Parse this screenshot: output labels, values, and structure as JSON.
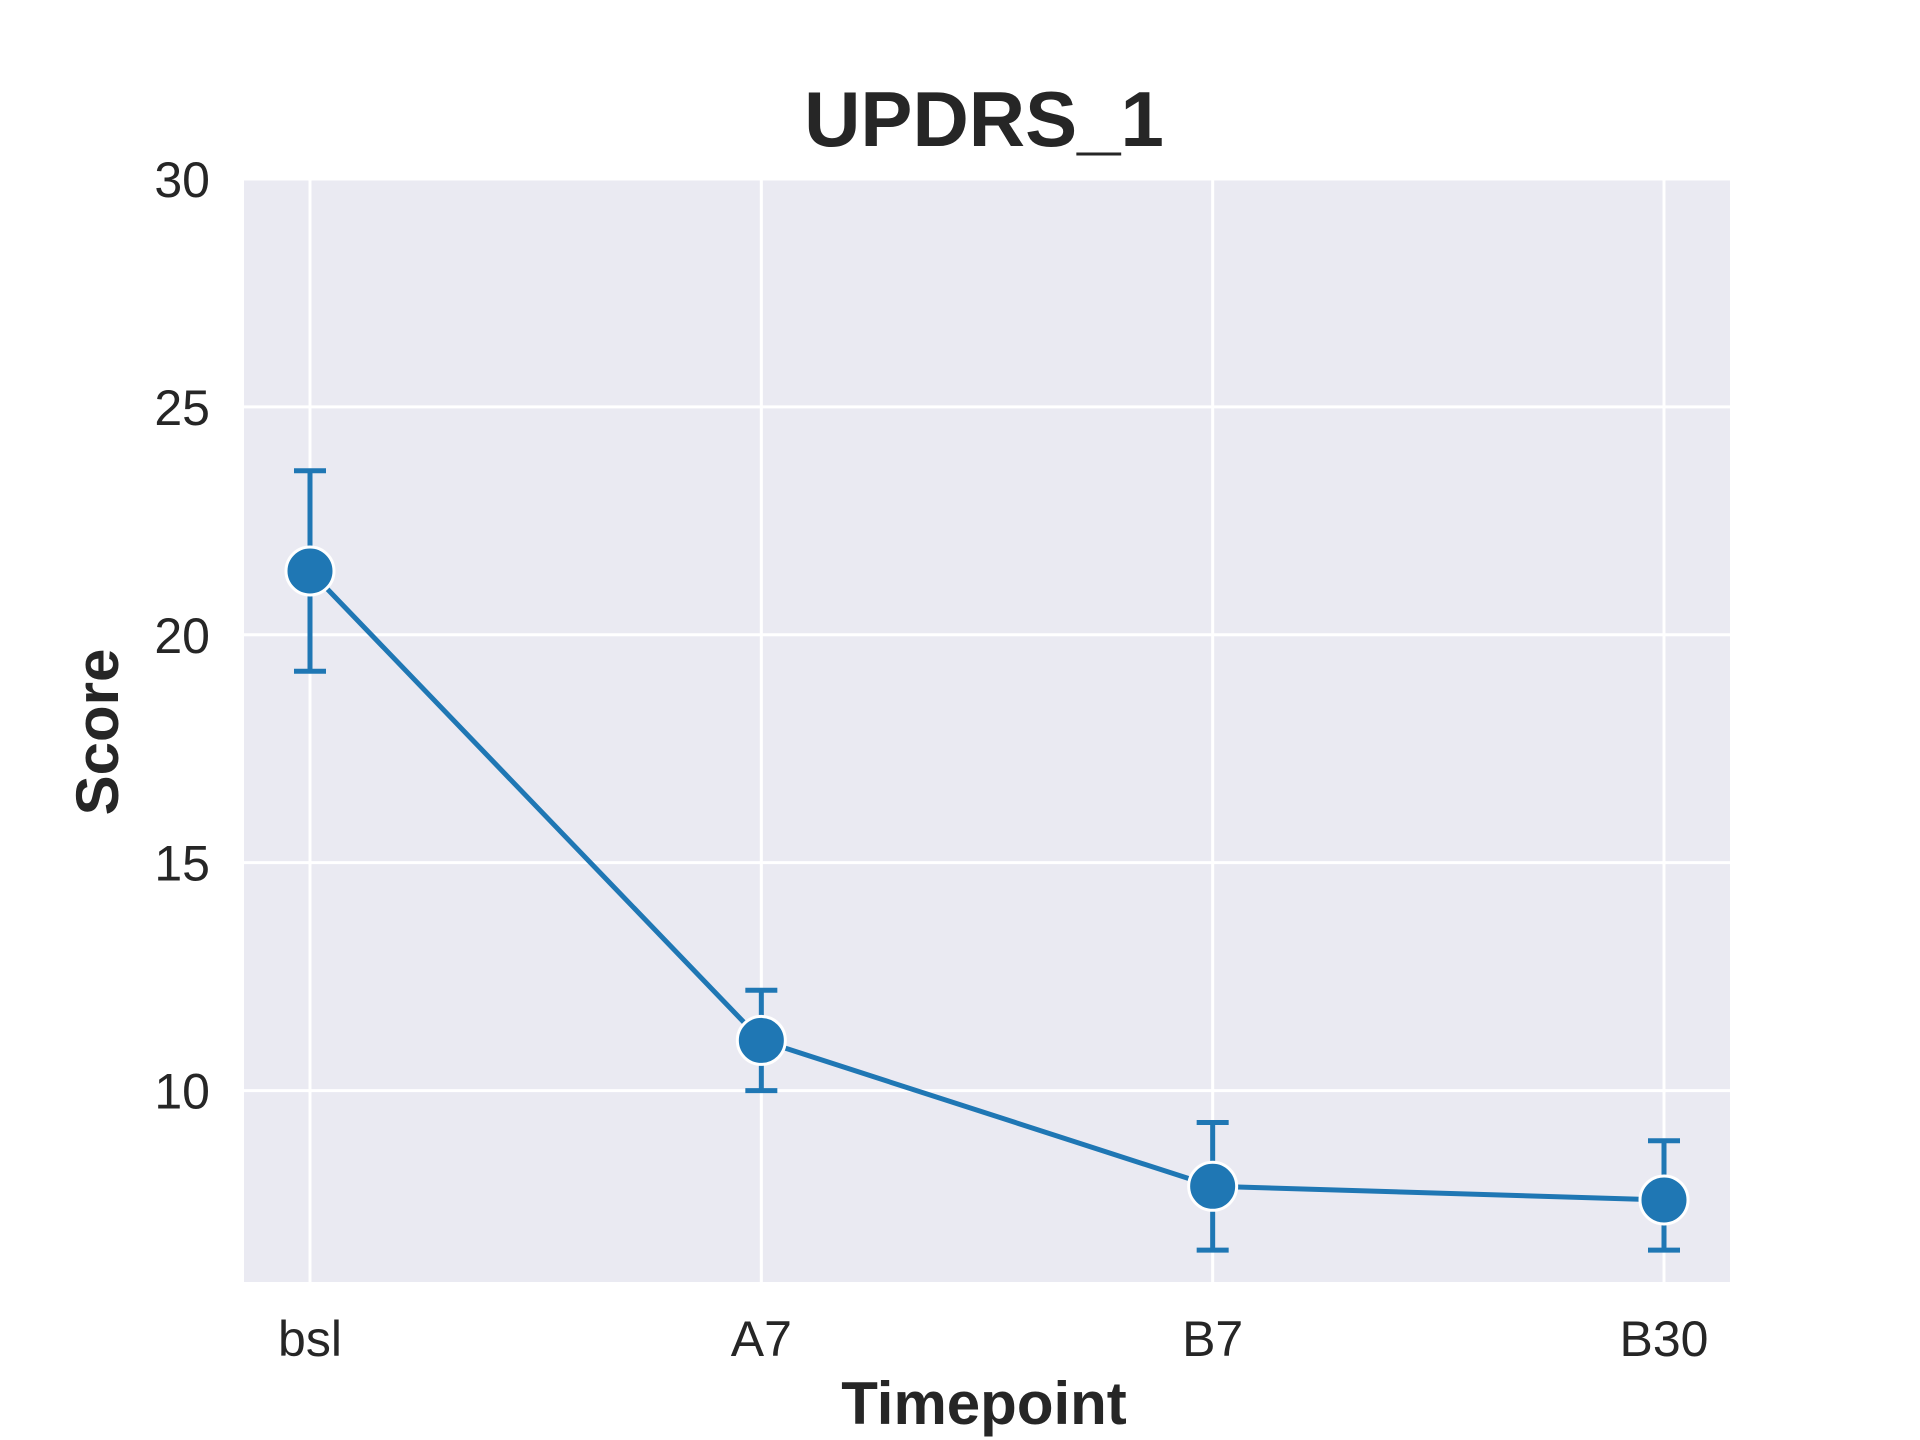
{
  "chart_data": {
    "type": "line",
    "title": "UPDRS_1",
    "xlabel": "Timepoint",
    "ylabel": "Score",
    "categories": [
      "bsl",
      "A7",
      "B7",
      "B30"
    ],
    "ylim": [
      5.8,
      30
    ],
    "yticks": [
      10,
      15,
      20,
      25,
      30
    ],
    "grid": true,
    "series": [
      {
        "values": [
          21.4,
          11.1,
          7.9,
          7.6
        ],
        "error_low": [
          19.2,
          10.0,
          6.5,
          6.5
        ],
        "error_high": [
          23.6,
          12.2,
          9.3,
          8.9
        ],
        "color": "#1f77b4"
      }
    ],
    "background_color": "#eaeaf2",
    "grid_color": "#ffffff"
  }
}
